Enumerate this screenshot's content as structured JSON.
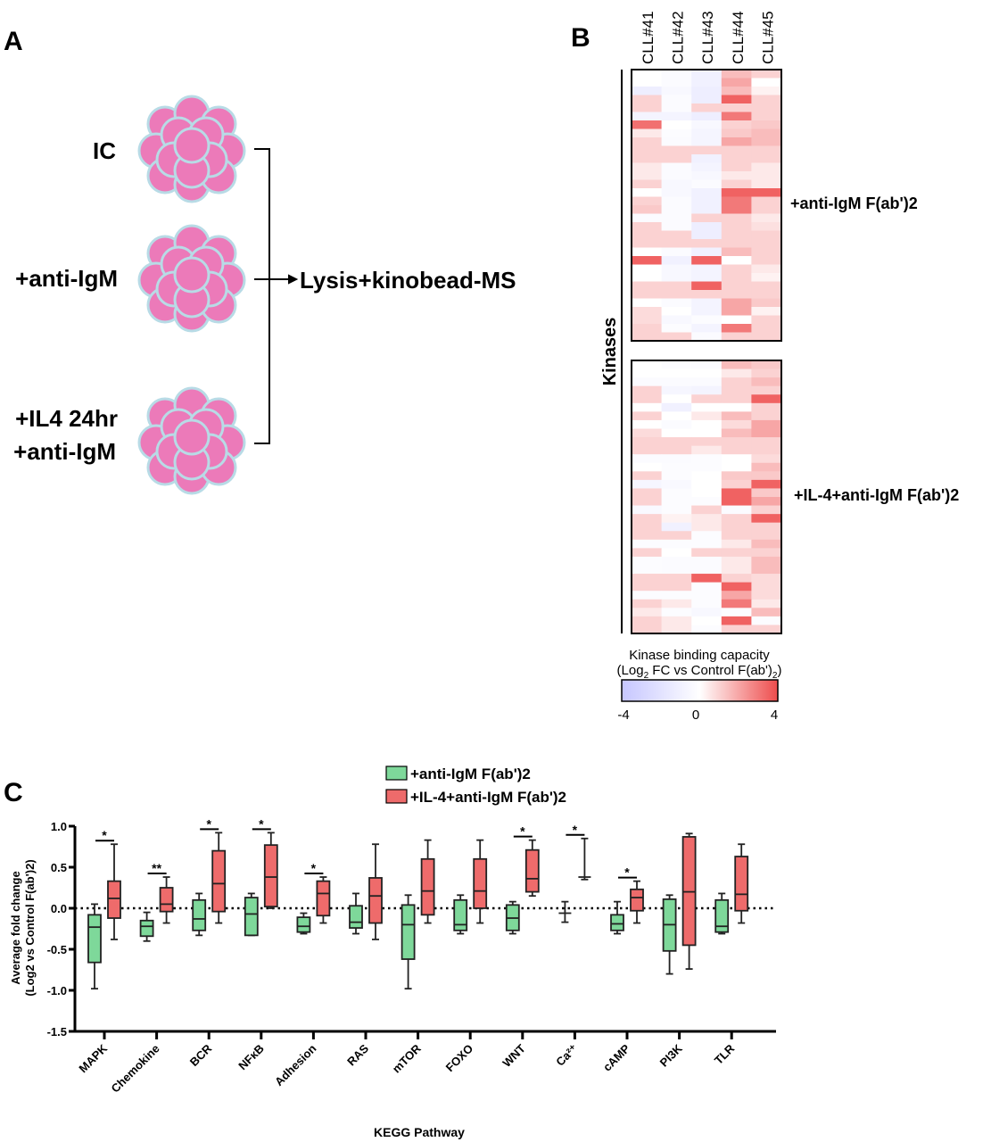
{
  "panel_a": {
    "label": "A",
    "conditions": [
      {
        "line1": "IC",
        "line2": ""
      },
      {
        "line1": "+anti-IgM",
        "line2": ""
      },
      {
        "line1": "+IL4 24hr",
        "line2": "+anti-IgM"
      }
    ],
    "result_label": "Lysis+kinobead-MS",
    "cell_color": "#ec7ab9",
    "cell_border_color": "#b8dbe6"
  },
  "panel_b": {
    "label": "B",
    "row_group_label": "Kinases",
    "block_labels": [
      "+anti-IgM F(ab')2",
      "+IL-4+anti-IgM F(ab')2"
    ],
    "colorbar": {
      "title_line1": "Kinase binding capacity",
      "title_line2_a": "(Log",
      "title_line2_sub1": "2",
      "title_line2_b": " FC vs Control F(ab')",
      "title_line2_sub2": "2",
      "title_line2_c": ")",
      "ticks": [
        "-4",
        "0",
        "4"
      ],
      "min": -4,
      "max": 4,
      "low_color": "#c6c6ff",
      "mid_color": "#ffffff",
      "high_color": "#ee4c4c"
    }
  },
  "chart_data": [
    {
      "type": "heatmap",
      "columns": [
        "CLL#41",
        "CLL#42",
        "CLL#43",
        "CLL#44",
        "CLL#45"
      ],
      "range": [
        -4,
        4
      ],
      "blocks": [
        {
          "name": "+anti-IgM F(ab')2",
          "values": [
            [
              0,
              -0.3,
              -1,
              1.5,
              1
            ],
            [
              0,
              -0.3,
              -1,
              2,
              0
            ],
            [
              -1.2,
              -0.5,
              -1.2,
              1.5,
              0.3
            ],
            [
              1,
              -0.3,
              -1.2,
              3.5,
              1
            ],
            [
              1,
              -0.3,
              1,
              1,
              1
            ],
            [
              -0.8,
              -0.8,
              -1.2,
              3,
              1
            ],
            [
              3.2,
              0,
              -0.5,
              1,
              1.2
            ],
            [
              0.5,
              -0.2,
              -0.7,
              1.2,
              1.5
            ],
            [
              1,
              -0.3,
              -0.7,
              2,
              1.5
            ],
            [
              1,
              1,
              1,
              1,
              1
            ],
            [
              1,
              1,
              -1,
              1,
              1
            ],
            [
              0.5,
              -0.3,
              -0.8,
              1,
              0.5
            ],
            [
              0.5,
              -0.3,
              -0.5,
              0.5,
              0.5
            ],
            [
              1,
              -0.5,
              -0.3,
              1,
              0.5
            ],
            [
              0,
              -0.5,
              -1,
              3.5,
              3.5
            ],
            [
              1,
              -0.3,
              -1,
              3,
              1
            ],
            [
              1.2,
              -0.3,
              -1,
              3,
              1
            ],
            [
              -0.3,
              -0.3,
              1,
              1,
              0.5
            ],
            [
              1,
              -0.3,
              -1.2,
              1,
              0.7
            ],
            [
              1,
              1,
              -1.2,
              1,
              1
            ],
            [
              1,
              1,
              1,
              1,
              1
            ],
            [
              0,
              -0.3,
              -1,
              1.5,
              1
            ],
            [
              3.5,
              -1,
              3.5,
              0,
              1
            ],
            [
              0,
              -0.5,
              -0.8,
              1,
              0.5
            ],
            [
              0,
              -0.5,
              -0.8,
              1,
              0.3
            ],
            [
              1,
              1,
              3.5,
              1,
              1
            ],
            [
              1,
              1,
              1,
              1,
              1
            ],
            [
              0,
              -0.3,
              -0.8,
              2,
              1.2
            ],
            [
              0.8,
              0,
              -0.8,
              2,
              0.3
            ],
            [
              0.8,
              -0.5,
              -0.2,
              0,
              1
            ],
            [
              1,
              -0.2,
              -0.8,
              3,
              1
            ],
            [
              1,
              1,
              -0.3,
              1,
              1
            ]
          ]
        },
        {
          "name": "+IL-4+anti-IgM F(ab')2",
          "values": [
            [
              0,
              -0.2,
              -0.3,
              1.5,
              1.2
            ],
            [
              0,
              0,
              0,
              0.5,
              1
            ],
            [
              -0.3,
              -0.3,
              -0.3,
              1,
              1.5
            ],
            [
              1,
              -0.6,
              -0.8,
              1,
              1
            ],
            [
              1,
              0,
              1,
              1,
              3.5
            ],
            [
              0,
              -1,
              0,
              0,
              1
            ],
            [
              1,
              0,
              0.5,
              1.5,
              1
            ],
            [
              0,
              -0.3,
              0,
              0.8,
              2
            ],
            [
              0.8,
              0,
              0,
              1.5,
              2
            ],
            [
              1,
              1,
              1,
              1,
              1
            ],
            [
              1,
              1,
              0.5,
              1,
              1
            ],
            [
              -0.3,
              -0.3,
              -0.2,
              0,
              0.8
            ],
            [
              0,
              -0.2,
              -0.2,
              0,
              1.5
            ],
            [
              1,
              -0.2,
              0,
              1.2,
              1.2
            ],
            [
              -0.6,
              -0.4,
              0,
              1,
              3.5
            ],
            [
              1,
              -0.2,
              0,
              3.5,
              1.2
            ],
            [
              1,
              -0.2,
              -0.2,
              3.5,
              2
            ],
            [
              -0.4,
              -0.2,
              1,
              -0.3,
              1
            ],
            [
              1,
              0.3,
              0.5,
              1,
              3.5
            ],
            [
              1,
              -1,
              0.5,
              1,
              1
            ],
            [
              1,
              1,
              -0.2,
              1,
              1
            ],
            [
              -0.2,
              -0.2,
              -0.2,
              0.5,
              1.5
            ],
            [
              1,
              0,
              1,
              1,
              1
            ],
            [
              -0.2,
              -0.3,
              -0.3,
              0.5,
              1.5
            ],
            [
              -0.2,
              -0.3,
              -0.3,
              0.5,
              1.5
            ],
            [
              1,
              1,
              3.5,
              1,
              0.8
            ],
            [
              1,
              1,
              -0.2,
              3.5,
              0.8
            ],
            [
              -0.2,
              -0.2,
              -0.2,
              2,
              0.8
            ],
            [
              1,
              0.5,
              -0.2,
              3,
              0.5
            ],
            [
              0.5,
              -0.2,
              -0.5,
              -0.2,
              1.5
            ],
            [
              1,
              0.5,
              0,
              3.5,
              -0.2
            ],
            [
              1,
              0.5,
              -0.2,
              1,
              1
            ]
          ]
        }
      ]
    },
    {
      "type": "box",
      "panel_label": "C",
      "xlabel": "KEGG Pathway",
      "ylabel_line1": "Average fold change",
      "ylabel_line2": "(Log2 vs Control F(ab')2)",
      "ylim": [
        -1.5,
        1.0
      ],
      "yticks": [
        "1.0",
        "0.5",
        "0.0",
        "-0.5",
        "-1.0",
        "-1.5"
      ],
      "reference_line": 0,
      "legend_placement": "top",
      "categories": [
        "MAPK",
        "Chemokine",
        "BCR",
        "NFκB",
        "Adhesion",
        "RAS",
        "mTOR",
        "FOXO",
        "WNT",
        "Ca²⁺",
        "cAMP",
        "PI3K",
        "TLR"
      ],
      "series": [
        {
          "name": "+anti-IgM F(ab')2",
          "color": "#7ed89a",
          "boxes": [
            [
              -0.98,
              -0.66,
              -0.23,
              -0.08,
              0.05
            ],
            [
              -0.4,
              -0.34,
              -0.22,
              -0.15,
              -0.05
            ],
            [
              -0.33,
              -0.27,
              -0.13,
              0.1,
              0.18
            ],
            [
              -0.33,
              -0.33,
              -0.07,
              0.13,
              0.18
            ],
            [
              -0.31,
              -0.29,
              -0.22,
              -0.11,
              -0.06
            ],
            [
              -0.31,
              -0.24,
              -0.17,
              0.03,
              0.18
            ],
            [
              -0.98,
              -0.62,
              -0.2,
              0.04,
              0.16
            ],
            [
              -0.31,
              -0.27,
              -0.2,
              0.1,
              0.16
            ],
            [
              -0.31,
              -0.27,
              -0.12,
              0.04,
              0.08
            ],
            [
              -0.17,
              -0.06,
              -0.06,
              -0.06,
              0.08
            ],
            [
              -0.31,
              -0.27,
              -0.19,
              -0.08,
              0.08
            ],
            [
              -0.8,
              -0.52,
              -0.2,
              0.11,
              0.16
            ],
            [
              -0.31,
              -0.29,
              -0.22,
              0.1,
              0.18
            ]
          ]
        },
        {
          "name": "+IL-4+anti-IgM F(ab')2",
          "color": "#ee6b6b",
          "boxes": [
            [
              -0.38,
              -0.12,
              0.12,
              0.33,
              0.78
            ],
            [
              -0.18,
              -0.04,
              0.05,
              0.25,
              0.38
            ],
            [
              -0.18,
              -0.04,
              0.3,
              0.7,
              0.92
            ],
            [
              0.0,
              0.02,
              0.38,
              0.77,
              0.92
            ],
            [
              -0.18,
              -0.09,
              0.18,
              0.33,
              0.38
            ],
            [
              -0.38,
              -0.18,
              0.15,
              0.37,
              0.78
            ],
            [
              -0.18,
              -0.08,
              0.21,
              0.6,
              0.83
            ],
            [
              -0.18,
              0.0,
              0.21,
              0.6,
              0.83
            ],
            [
              0.15,
              0.2,
              0.36,
              0.71,
              0.83
            ],
            [
              0.35,
              0.38,
              0.38,
              0.38,
              0.85
            ],
            [
              -0.18,
              -0.03,
              0.13,
              0.23,
              0.33
            ],
            [
              -0.74,
              -0.45,
              0.2,
              0.87,
              0.91
            ],
            [
              -0.18,
              -0.03,
              0.17,
              0.63,
              0.78
            ]
          ]
        }
      ],
      "significance": [
        "*",
        "**",
        "*",
        "*",
        "*",
        "",
        "",
        "",
        "*",
        "*",
        "*",
        "",
        ""
      ]
    }
  ]
}
